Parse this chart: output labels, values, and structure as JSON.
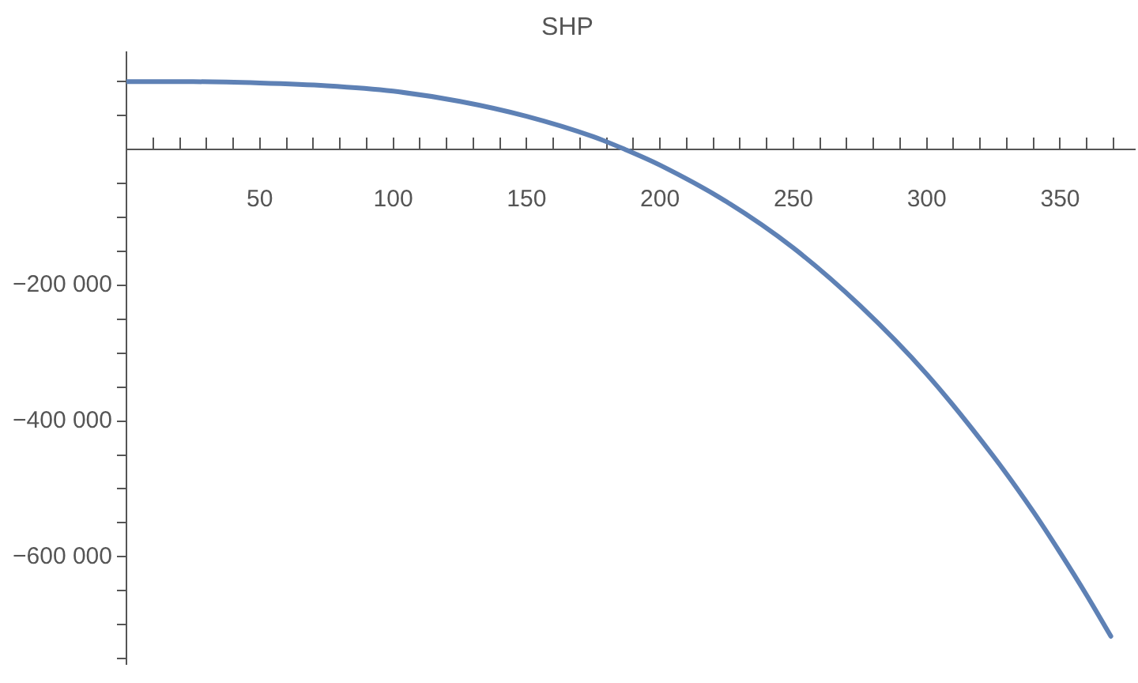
{
  "chart_data": {
    "type": "line",
    "title": "SHP",
    "x": [
      0,
      25,
      50,
      75,
      100,
      125,
      150,
      175,
      187,
      200,
      225,
      250,
      275,
      300,
      325,
      340,
      350,
      360,
      369
    ],
    "series": [
      {
        "color": "#5e81b5",
        "values": [
          100000,
          100000,
          98000,
          94000,
          86000,
          71000,
          49000,
          19000,
          0,
          -23000,
          -77000,
          -145000,
          -230000,
          -331000,
          -452000,
          -534000,
          -594000,
          -657000,
          -717000
        ]
      }
    ],
    "xlim": [
      0,
      378
    ],
    "xticks": [
      {
        "value": 10,
        "label": null
      },
      {
        "value": 20,
        "label": null
      },
      {
        "value": 30,
        "label": null
      },
      {
        "value": 40,
        "label": null
      },
      50,
      {
        "value": 60,
        "label": null
      },
      {
        "value": 70,
        "label": null
      },
      {
        "value": 80,
        "label": null
      },
      {
        "value": 90,
        "label": null
      },
      100,
      {
        "value": 110,
        "label": null
      },
      {
        "value": 120,
        "label": null
      },
      {
        "value": 130,
        "label": null
      },
      {
        "value": 140,
        "label": null
      },
      150,
      {
        "value": 160,
        "label": null
      },
      {
        "value": 170,
        "label": null
      },
      {
        "value": 180,
        "label": null
      },
      {
        "value": 190,
        "label": null
      },
      200,
      {
        "value": 210,
        "label": null
      },
      {
        "value": 220,
        "label": null
      },
      {
        "value": 230,
        "label": null
      },
      {
        "value": 240,
        "label": null
      },
      250,
      {
        "value": 260,
        "label": null
      },
      {
        "value": 270,
        "label": null
      },
      {
        "value": 280,
        "label": null
      },
      {
        "value": 290,
        "label": null
      },
      300,
      {
        "value": 310,
        "label": null
      },
      {
        "value": 320,
        "label": null
      },
      {
        "value": 330,
        "label": null
      },
      {
        "value": 340,
        "label": null
      },
      350,
      {
        "value": 360,
        "label": null
      },
      {
        "value": 370,
        "label": null
      }
    ],
    "ylim": [
      -758000,
      143000
    ],
    "yticks": [
      {
        "value": -750000,
        "label": null
      },
      {
        "value": -700000,
        "label": null
      },
      {
        "value": -650000,
        "label": null
      },
      {
        "value": -600000,
        "label": "−600 000"
      },
      {
        "value": -550000,
        "label": null
      },
      {
        "value": -500000,
        "label": null
      },
      {
        "value": -450000,
        "label": null
      },
      {
        "value": -400000,
        "label": "−400 000"
      },
      {
        "value": -350000,
        "label": null
      },
      {
        "value": -300000,
        "label": null
      },
      {
        "value": -250000,
        "label": null
      },
      {
        "value": -200000,
        "label": "−200 000"
      },
      {
        "value": -150000,
        "label": null
      },
      {
        "value": -100000,
        "label": null
      },
      {
        "value": -50000,
        "label": null
      },
      {
        "value": 50000,
        "label": null
      },
      {
        "value": 100000,
        "label": null
      }
    ],
    "grid": false,
    "legend": false,
    "marker": "none",
    "line_style": "solid"
  }
}
